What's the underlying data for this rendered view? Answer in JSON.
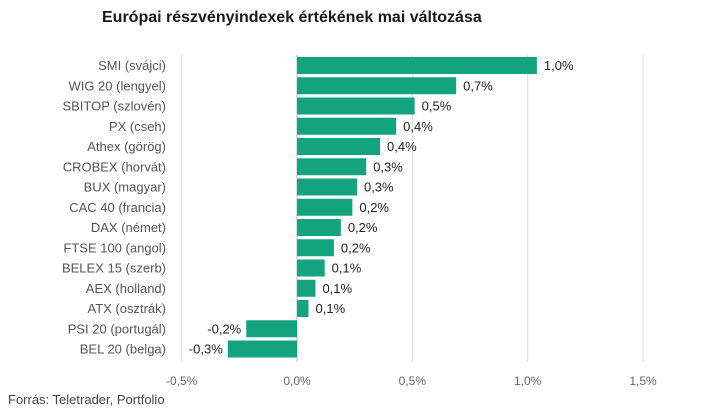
{
  "chart_data": {
    "type": "bar",
    "orientation": "horizontal",
    "title": "Európai részvényindexek értékének mai változása",
    "xlabel": "",
    "ylabel": "",
    "unit": "%",
    "xlim": [
      -0.5,
      1.5
    ],
    "xticks": [
      -0.5,
      0.0,
      0.5,
      1.0,
      1.5
    ],
    "xtick_labels": [
      "-0,5%",
      "0,0%",
      "0,5%",
      "1,0%",
      "1,5%"
    ],
    "grid": "vertical",
    "legend": "none",
    "bar_color": "#14a37f",
    "categories": [
      "SMI (svájci)",
      "WIG 20 (lengyel)",
      "SBITOP (szlovén)",
      "PX (cseh)",
      "Athex (görög)",
      "CROBEX (horvát)",
      "BUX (magyar)",
      "CAC 40 (francia)",
      "DAX (német)",
      "FTSE 100 (angol)",
      "BELEX 15 (szerb)",
      "AEX (holland)",
      "ATX (osztrák)",
      "PSI 20 (portugál)",
      "BEL 20 (belga)"
    ],
    "values": [
      1.04,
      0.69,
      0.51,
      0.43,
      0.36,
      0.3,
      0.26,
      0.24,
      0.19,
      0.16,
      0.12,
      0.08,
      0.05,
      -0.22,
      -0.3
    ],
    "data_labels": [
      "1,0%",
      "0,7%",
      "0,5%",
      "0,4%",
      "0,4%",
      "0,3%",
      "0,3%",
      "0,2%",
      "0,2%",
      "0,2%",
      "0,1%",
      "0,1%",
      "0,1%",
      "-0,2%",
      "-0,3%"
    ],
    "source": "Forrás: Teletrader, Portfolio"
  }
}
